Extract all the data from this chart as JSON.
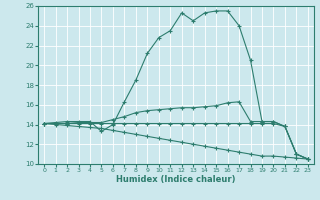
{
  "title": "",
  "xlabel": "Humidex (Indice chaleur)",
  "ylabel": "",
  "bg_color": "#cce8ed",
  "grid_color": "#ffffff",
  "line_color": "#2d7d6e",
  "xlim": [
    -0.5,
    23.5
  ],
  "ylim": [
    10,
    26
  ],
  "xticks": [
    0,
    1,
    2,
    3,
    4,
    5,
    6,
    7,
    8,
    9,
    10,
    11,
    12,
    13,
    14,
    15,
    16,
    17,
    18,
    19,
    20,
    21,
    22,
    23
  ],
  "yticks": [
    10,
    12,
    14,
    16,
    18,
    20,
    22,
    24,
    26
  ],
  "lines": [
    {
      "x": [
        0,
        1,
        2,
        3,
        4,
        5,
        6,
        7,
        8,
        9,
        10,
        11,
        12,
        13,
        14,
        15,
        16,
        17,
        18,
        19,
        20,
        21,
        22,
        23
      ],
      "y": [
        14.1,
        14.2,
        14.3,
        14.3,
        14.3,
        13.3,
        14.0,
        16.3,
        18.5,
        21.2,
        22.8,
        23.5,
        25.3,
        24.5,
        25.3,
        25.5,
        25.5,
        24.0,
        20.5,
        14.3,
        14.3,
        13.8,
        11.0,
        10.5
      ]
    },
    {
      "x": [
        0,
        1,
        2,
        3,
        4,
        5,
        6,
        7,
        8,
        9,
        10,
        11,
        12,
        13,
        14,
        15,
        16,
        17,
        18,
        19,
        20,
        21,
        22,
        23
      ],
      "y": [
        14.1,
        14.1,
        14.1,
        14.2,
        14.2,
        14.2,
        14.5,
        14.8,
        15.2,
        15.4,
        15.5,
        15.6,
        15.7,
        15.7,
        15.8,
        15.9,
        16.2,
        16.3,
        14.3,
        14.3,
        14.3,
        13.8,
        11.0,
        10.5
      ]
    },
    {
      "x": [
        0,
        1,
        2,
        3,
        4,
        5,
        6,
        7,
        8,
        9,
        10,
        11,
        12,
        13,
        14,
        15,
        16,
        17,
        18,
        19,
        20,
        21,
        22,
        23
      ],
      "y": [
        14.1,
        14.1,
        14.1,
        14.1,
        14.1,
        14.1,
        14.1,
        14.1,
        14.1,
        14.1,
        14.1,
        14.1,
        14.1,
        14.1,
        14.1,
        14.1,
        14.1,
        14.1,
        14.1,
        14.1,
        14.1,
        13.8,
        11.0,
        10.5
      ]
    },
    {
      "x": [
        0,
        1,
        2,
        3,
        4,
        5,
        6,
        7,
        8,
        9,
        10,
        11,
        12,
        13,
        14,
        15,
        16,
        17,
        18,
        19,
        20,
        21,
        22,
        23
      ],
      "y": [
        14.1,
        14.0,
        13.9,
        13.8,
        13.7,
        13.6,
        13.4,
        13.2,
        13.0,
        12.8,
        12.6,
        12.4,
        12.2,
        12.0,
        11.8,
        11.6,
        11.4,
        11.2,
        11.0,
        10.8,
        10.8,
        10.7,
        10.6,
        10.5
      ]
    }
  ]
}
